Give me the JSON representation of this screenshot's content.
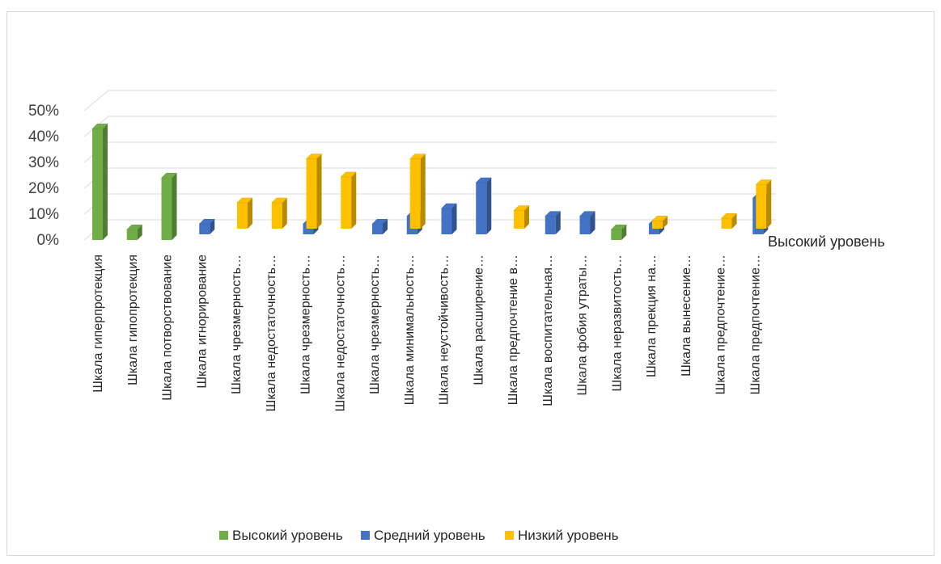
{
  "chart_data": {
    "type": "bar",
    "variant": "3d-column",
    "title": "",
    "xlabel": "",
    "ylabel": "",
    "ylim": [
      0,
      0.5
    ],
    "y_ticks": [
      "0%",
      "10%",
      "20%",
      "30%",
      "40%",
      "50%"
    ],
    "grid": true,
    "legend_position": "bottom",
    "series_axis_label": "Высокий уровень",
    "categories": [
      "Шкала гиперпротекция",
      "Шкала гипопротекция",
      "Шкала потворствование",
      "Шкала игнорирование",
      "Шкала чрезмерность…",
      "Шкала недостаточность…",
      "Шкала чрезмерность…",
      "Шкала недостаточность…",
      "Шкала чрезмерность…",
      "Шкала минимальность…",
      "Шкала неустойчивость…",
      "Шкала расширение…",
      "Шкала предпочтение в…",
      "Шкала воспитательная…",
      "Шкала фобия утраты…",
      "Шкала неразвитость…",
      "Шкала прекция на…",
      "Шкала вынесение…",
      "Шкала предпочтение…",
      "Шкала предпочтение…"
    ],
    "series": [
      {
        "name": "Высокий уровень",
        "color": "#70ad47",
        "values": [
          0.43,
          0.04,
          0.24,
          0,
          0,
          0,
          0,
          0,
          0,
          0,
          0,
          0,
          0,
          0,
          0,
          0.04,
          0,
          0,
          0,
          0
        ]
      },
      {
        "name": "Средний уровень",
        "color": "#4472c4",
        "values": [
          0,
          0,
          0,
          0.04,
          0,
          0,
          0.04,
          0,
          0.04,
          0.07,
          0.1,
          0.2,
          0,
          0.07,
          0.07,
          0,
          0.04,
          0,
          0,
          0.14
        ]
      },
      {
        "name": "Низкий уровень",
        "color": "#ffc000",
        "values": [
          0,
          0,
          0,
          0,
          0.1,
          0.1,
          0.27,
          0.2,
          0,
          0.27,
          0,
          0,
          0.07,
          0,
          0,
          0,
          0.03,
          0,
          0.04,
          0.17
        ]
      }
    ]
  }
}
